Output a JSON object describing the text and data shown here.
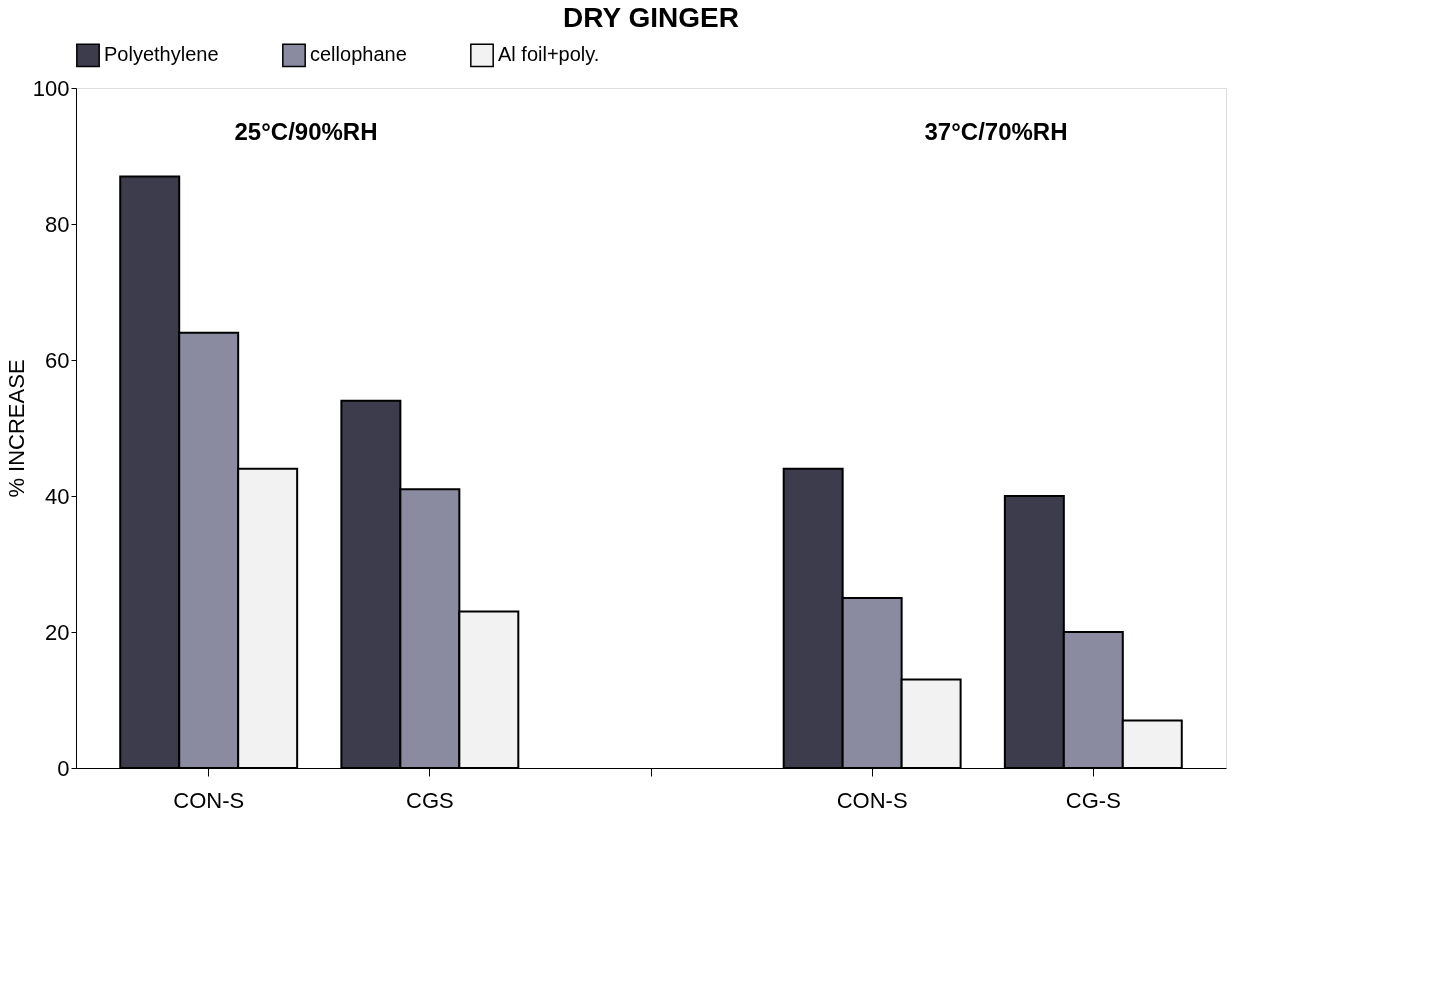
{
  "chart_data": {
    "type": "bar",
    "title": "DRY GINGER",
    "ylabel": "% INCREASE",
    "categories": [
      "CON-S",
      "CGS",
      null,
      "CON-S",
      "CG-S"
    ],
    "series": [
      {
        "name": "Polyethylene",
        "color": "#3c3c4c",
        "values": [
          87,
          54,
          null,
          44,
          40
        ]
      },
      {
        "name": "cellophane",
        "color": "#8a8aa0",
        "values": [
          64,
          41,
          null,
          25,
          20
        ]
      },
      {
        "name": "Al foil+poly.",
        "color": "#f2f2f2",
        "values": [
          44,
          23,
          null,
          13,
          7
        ]
      }
    ],
    "annotations": [
      "25°C/90%RH",
      "37°C/70%RH"
    ],
    "ylim": [
      0,
      100
    ],
    "yticks": [
      0,
      20,
      40,
      60,
      80,
      100
    ],
    "grid": false,
    "legend": "top"
  }
}
